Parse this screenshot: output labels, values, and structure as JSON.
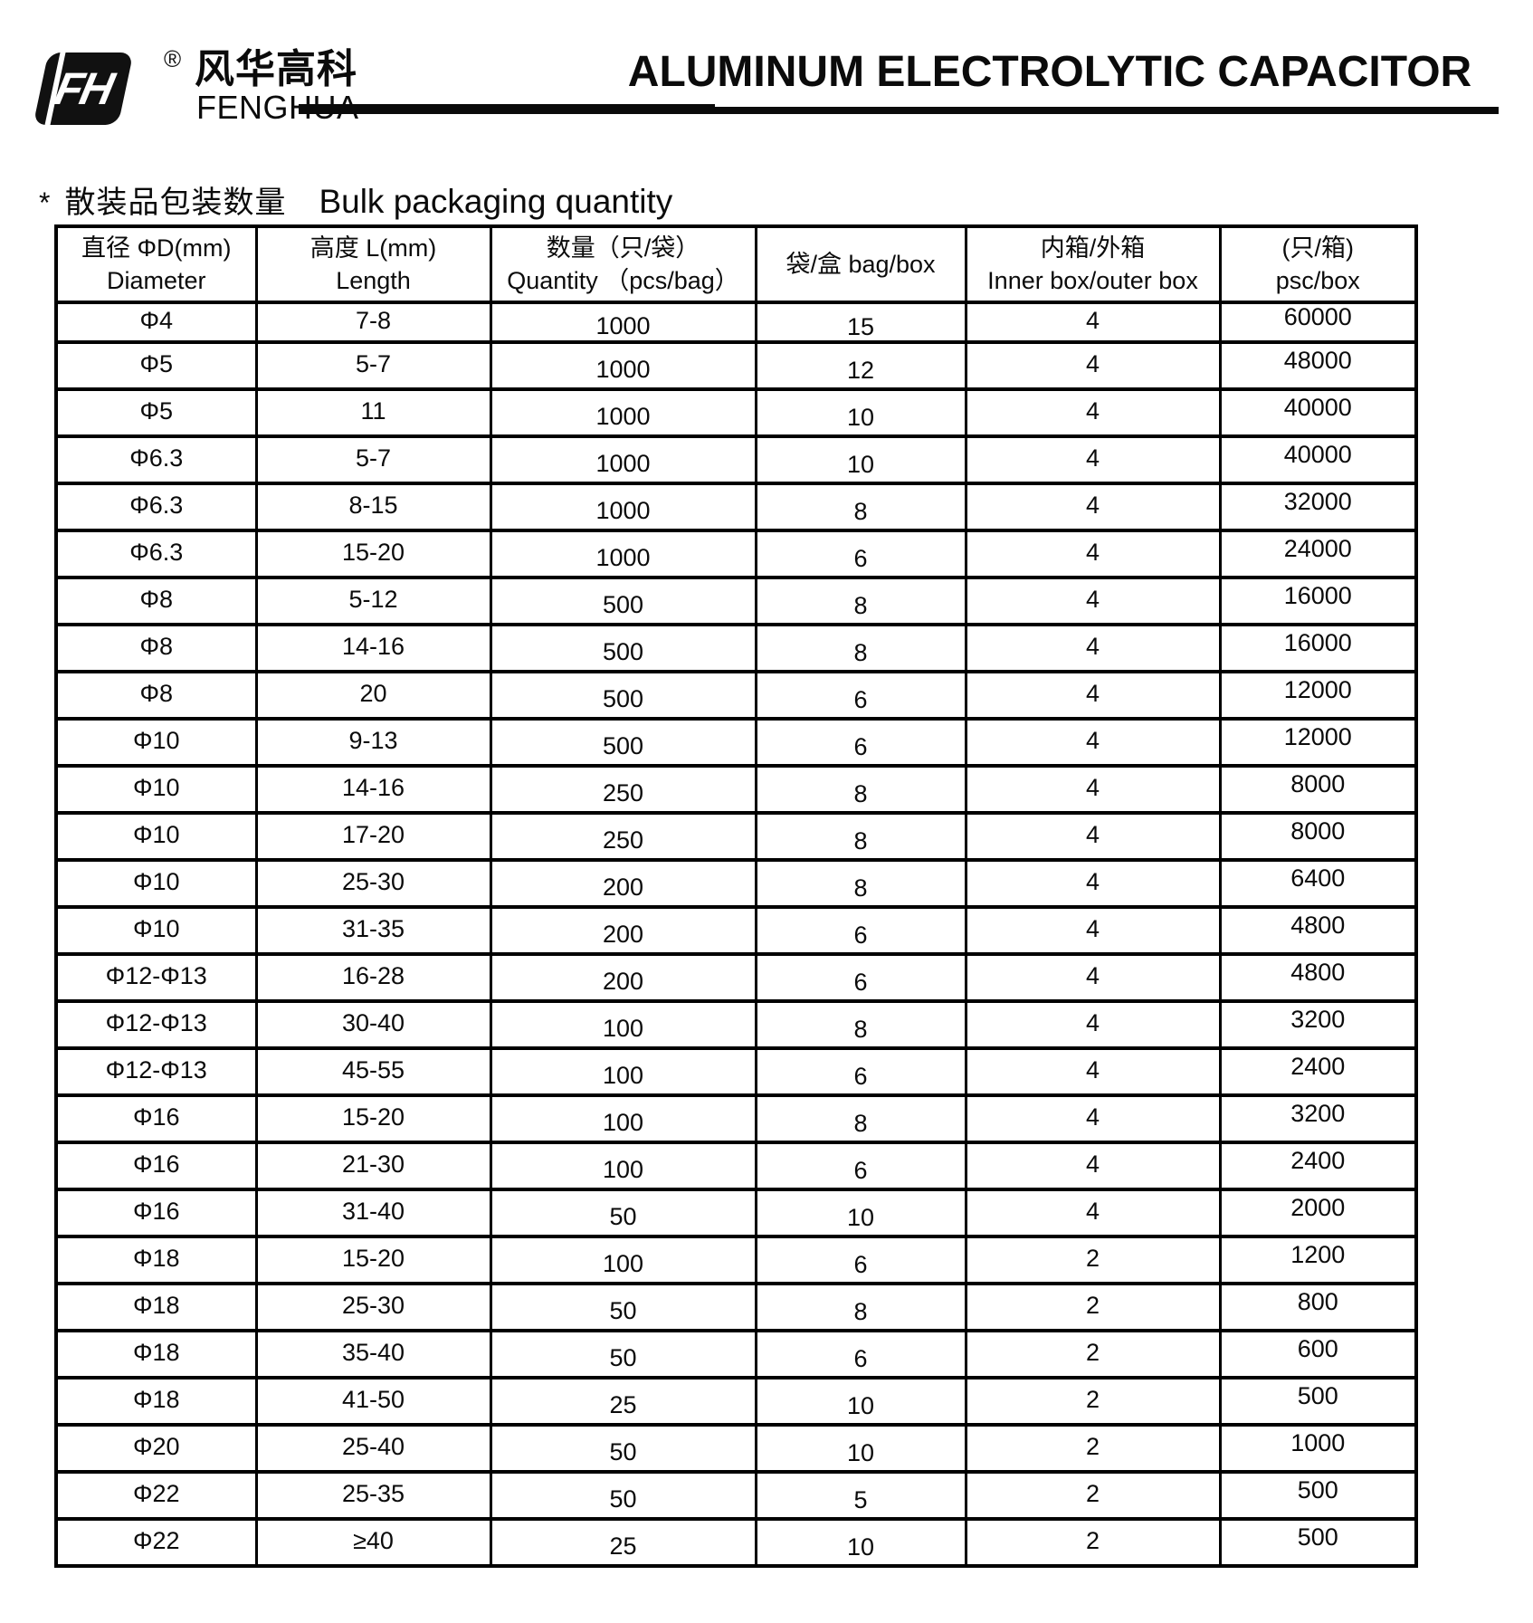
{
  "header": {
    "logo": {
      "monogram": "FH",
      "registered": "®",
      "brand_cn": "风华高科",
      "brand_en": "FENGHUA"
    },
    "title": "ALUMINUM ELECTROLYTIC CAPACITOR"
  },
  "section": {
    "bullet": "*",
    "title_cn": "散装品包装数量",
    "title_en": "Bulk packaging quantity"
  },
  "colors": {
    "ink": "#0a0a0a",
    "background": "#ffffff"
  },
  "table": {
    "columns": [
      {
        "cn": "直径 ΦD(mm)",
        "en": "Diameter"
      },
      {
        "cn": "高度 L(mm)",
        "en": "Length"
      },
      {
        "cn": "数量（只/袋）",
        "en": "Quantity （pcs/bag）"
      },
      {
        "cn": "袋/盒 bag/box",
        "en": ""
      },
      {
        "cn": "内箱/外箱",
        "en": "Inner box/outer box"
      },
      {
        "cn": "(只/箱)",
        "en": "psc/box"
      }
    ],
    "rows": [
      [
        "Φ4",
        "7-8",
        "1000",
        "15",
        "4",
        "60000"
      ],
      [
        "Φ5",
        "5-7",
        "1000",
        "12",
        "4",
        "48000"
      ],
      [
        "Φ5",
        "11",
        "1000",
        "10",
        "4",
        "40000"
      ],
      [
        "Φ6.3",
        "5-7",
        "1000",
        "10",
        "4",
        "40000"
      ],
      [
        "Φ6.3",
        "8-15",
        "1000",
        "8",
        "4",
        "32000"
      ],
      [
        "Φ6.3",
        "15-20",
        "1000",
        "6",
        "4",
        "24000"
      ],
      [
        "Φ8",
        "5-12",
        "500",
        "8",
        "4",
        "16000"
      ],
      [
        "Φ8",
        "14-16",
        "500",
        "8",
        "4",
        "16000"
      ],
      [
        "Φ8",
        "20",
        "500",
        "6",
        "4",
        "12000"
      ],
      [
        "Φ10",
        "9-13",
        "500",
        "6",
        "4",
        "12000"
      ],
      [
        "Φ10",
        "14-16",
        "250",
        "8",
        "4",
        "8000"
      ],
      [
        "Φ10",
        "17-20",
        "250",
        "8",
        "4",
        "8000"
      ],
      [
        "Φ10",
        "25-30",
        "200",
        "8",
        "4",
        "6400"
      ],
      [
        "Φ10",
        "31-35",
        "200",
        "6",
        "4",
        "4800"
      ],
      [
        "Φ12-Φ13",
        "16-28",
        "200",
        "6",
        "4",
        "4800"
      ],
      [
        "Φ12-Φ13",
        "30-40",
        "100",
        "8",
        "4",
        "3200"
      ],
      [
        "Φ12-Φ13",
        "45-55",
        "100",
        "6",
        "4",
        "2400"
      ],
      [
        "Φ16",
        "15-20",
        "100",
        "8",
        "4",
        "3200"
      ],
      [
        "Φ16",
        "21-30",
        "100",
        "6",
        "4",
        "2400"
      ],
      [
        "Φ16",
        "31-40",
        "50",
        "10",
        "4",
        "2000"
      ],
      [
        "Φ18",
        "15-20",
        "100",
        "6",
        "2",
        "1200"
      ],
      [
        "Φ18",
        "25-30",
        "50",
        "8",
        "2",
        "800"
      ],
      [
        "Φ18",
        "35-40",
        "50",
        "6",
        "2",
        "600"
      ],
      [
        "Φ18",
        "41-50",
        "25",
        "10",
        "2",
        "500"
      ],
      [
        "Φ20",
        "25-40",
        "50",
        "10",
        "2",
        "1000"
      ],
      [
        "Φ22",
        "25-35",
        "50",
        "5",
        "2",
        "500"
      ],
      [
        "Φ22",
        "≥40",
        "25",
        "10",
        "2",
        "500"
      ]
    ]
  }
}
